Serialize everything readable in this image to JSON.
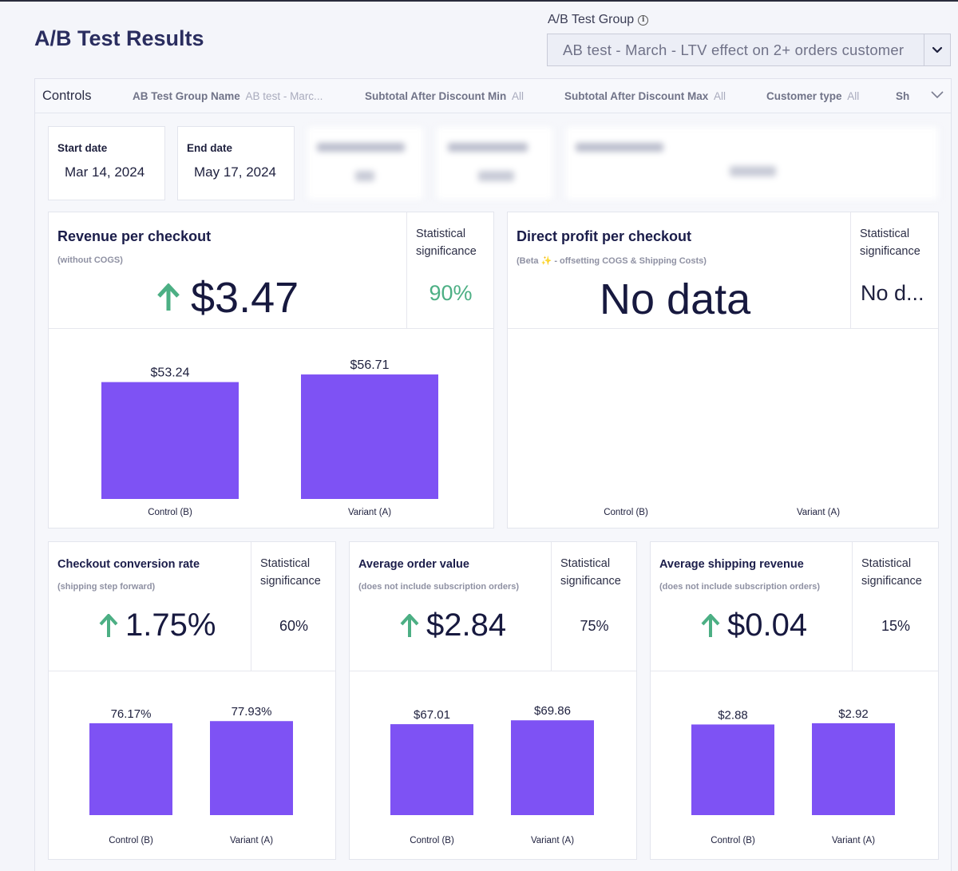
{
  "page": {
    "title": "A/B Test Results"
  },
  "group_selector": {
    "label": "A/B Test Group",
    "value": "AB test - March - LTV effect on 2+ orders customer"
  },
  "controls": {
    "title": "Controls",
    "filters": [
      {
        "name": "AB Test Group Name",
        "value": "AB test - Marc..."
      },
      {
        "name": "Subtotal After Discount Min",
        "value": "All"
      },
      {
        "name": "Subtotal After Discount Max",
        "value": "All"
      },
      {
        "name": "Customer type",
        "value": "All"
      },
      {
        "name": "Sh",
        "value": ""
      }
    ]
  },
  "dates": {
    "start_label": "Start date",
    "start_value": "Mar 14, 2024",
    "end_label": "End date",
    "end_value": "May 17, 2024"
  },
  "metrics": {
    "revenue": {
      "title": "Revenue per checkout",
      "subtitle": "(without COGS)",
      "value": "$3.47",
      "sig_label_1": "Statistical",
      "sig_label_2": "significance",
      "sig_value": "90%"
    },
    "profit": {
      "title": "Direct profit per checkout",
      "subtitle": "(Beta ✨ -  offsetting COGS & Shipping Costs)",
      "value": "No data",
      "sig_label_1": "Statistical",
      "sig_label_2": "significance",
      "sig_value": "No d..."
    },
    "conversion": {
      "title": "Checkout conversion rate",
      "subtitle": "(shipping step forward)",
      "value": "1.75%",
      "sig_label_1": "Statistical",
      "sig_label_2": "significance",
      "sig_value": "60%"
    },
    "aov": {
      "title": "Average order value",
      "subtitle": "(does not include subscription orders)",
      "value": "$2.84",
      "sig_label_1": "Statistical",
      "sig_label_2": "significance",
      "sig_value": "75%"
    },
    "shipping": {
      "title": "Average shipping revenue",
      "subtitle": "(does not include subscription orders)",
      "value": "$0.04",
      "sig_label_1": "Statistical",
      "sig_label_2": "significance",
      "sig_value": "15%"
    }
  },
  "colors": {
    "bar": "#7e52f4",
    "up_arrow": "#4caf84",
    "sig_positive": "#4caf84"
  },
  "chart_data": [
    {
      "type": "bar",
      "categories": [
        "Control (B)",
        "Variant (A)"
      ],
      "values": [
        53.24,
        56.71
      ],
      "labels": [
        "$53.24",
        "$56.71"
      ],
      "ylim": [
        0,
        60
      ]
    },
    {
      "type": "bar",
      "categories": [
        "Control (B)",
        "Variant (A)"
      ],
      "values": [],
      "labels": []
    },
    {
      "type": "bar",
      "categories": [
        "Control (B)",
        "Variant (A)"
      ],
      "values": [
        76.17,
        77.93
      ],
      "labels": [
        "76.17%",
        "77.93%"
      ],
      "ylim": [
        0,
        90
      ]
    },
    {
      "type": "bar",
      "categories": [
        "Control (B)",
        "Variant (A)"
      ],
      "values": [
        67.01,
        69.86
      ],
      "labels": [
        "$67.01",
        "$69.86"
      ],
      "ylim": [
        0,
        80
      ]
    },
    {
      "type": "bar",
      "categories": [
        "Control (B)",
        "Variant (A)"
      ],
      "values": [
        2.88,
        2.92
      ],
      "labels": [
        "$2.88",
        "$2.92"
      ],
      "ylim": [
        0,
        3.45
      ]
    }
  ]
}
